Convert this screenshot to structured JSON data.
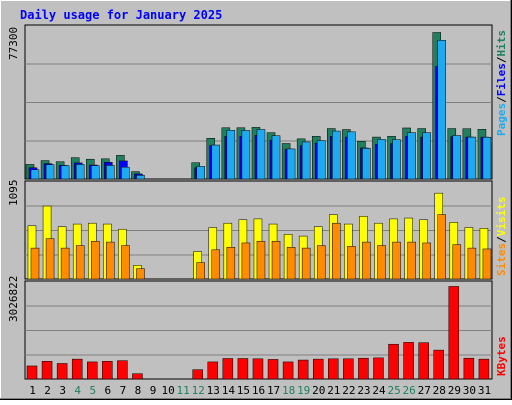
{
  "chart_data": [
    {
      "type": "bar",
      "title": "Daily usage for January 2025",
      "panel": "hits-files-pages",
      "ymax_label": "77300",
      "categories": [
        "1",
        "2",
        "3",
        "4",
        "5",
        "6",
        "7",
        "8",
        "9",
        "10",
        "11",
        "12",
        "13",
        "14",
        "15",
        "16",
        "17",
        "18",
        "19",
        "20",
        "21",
        "22",
        "23",
        "24",
        "25",
        "26",
        "27",
        "28",
        "29",
        "30",
        "31"
      ],
      "series": [
        {
          "name": "Hits",
          "color": "#1f7f5f",
          "values": [
            7500,
            9500,
            8900,
            11000,
            10200,
            10400,
            12200,
            3800,
            0,
            0,
            0,
            8400,
            21000,
            26400,
            26400,
            26600,
            23900,
            18300,
            20700,
            22000,
            26000,
            25500,
            19400,
            21600,
            22000,
            26300,
            26000,
            75500,
            26000,
            25900,
            25600
          ]
        },
        {
          "name": "Files",
          "color": "#0000ff",
          "values": [
            5800,
            7900,
            7000,
            8300,
            7200,
            8600,
            9300,
            2600,
            0,
            0,
            0,
            5800,
            17200,
            22000,
            22000,
            22500,
            20000,
            15400,
            17200,
            18500,
            22000,
            21600,
            16000,
            17900,
            18300,
            22000,
            21600,
            58000,
            21800,
            21600,
            21600
          ]
        },
        {
          "name": "Pages",
          "color": "#1eaaf0",
          "values": [
            4800,
            7400,
            6900,
            7500,
            6900,
            7000,
            6100,
            1900,
            0,
            0,
            0,
            6500,
            17500,
            25100,
            25000,
            25500,
            22300,
            15500,
            19100,
            19800,
            24700,
            24300,
            15800,
            20400,
            20300,
            23900,
            23900,
            71500,
            22400,
            21600,
            21500
          ]
        }
      ],
      "legend": [
        "Pages",
        "/",
        "Files",
        "/",
        "Hits"
      ],
      "weekend_days": [
        "4",
        "5",
        "11",
        "12",
        "18",
        "19",
        "25",
        "26"
      ]
    },
    {
      "type": "bar",
      "panel": "visits-sites",
      "ymax_label": "1095",
      "categories": [
        "1",
        "2",
        "3",
        "4",
        "5",
        "6",
        "7",
        "8",
        "9",
        "10",
        "11",
        "12",
        "13",
        "14",
        "15",
        "16",
        "17",
        "18",
        "19",
        "20",
        "21",
        "22",
        "23",
        "24",
        "25",
        "26",
        "27",
        "28",
        "29",
        "30",
        "31"
      ],
      "series": [
        {
          "name": "Visits",
          "color": "#ffff00",
          "values": [
            620,
            850,
            610,
            640,
            650,
            640,
            580,
            160,
            0,
            0,
            0,
            320,
            600,
            650,
            690,
            700,
            640,
            520,
            500,
            610,
            750,
            640,
            730,
            650,
            700,
            710,
            690,
            1000,
            660,
            600,
            590
          ]
        },
        {
          "name": "Sites",
          "color": "#ff8c00",
          "values": [
            360,
            470,
            360,
            390,
            440,
            430,
            390,
            120,
            0,
            0,
            0,
            190,
            340,
            370,
            420,
            440,
            440,
            370,
            360,
            390,
            650,
            380,
            430,
            390,
            430,
            430,
            420,
            750,
            400,
            360,
            350
          ]
        }
      ],
      "legend": [
        "Sites",
        "/",
        "Visits"
      ]
    },
    {
      "type": "bar",
      "panel": "kbytes",
      "ymax_label": "3026822",
      "categories": [
        "1",
        "2",
        "3",
        "4",
        "5",
        "6",
        "7",
        "8",
        "9",
        "10",
        "11",
        "12",
        "13",
        "14",
        "15",
        "16",
        "17",
        "18",
        "19",
        "20",
        "21",
        "22",
        "23",
        "24",
        "25",
        "26",
        "27",
        "28",
        "29",
        "30",
        "31"
      ],
      "series": [
        {
          "name": "KBytes",
          "color": "#ff0000",
          "values": [
            420000,
            570000,
            500000,
            640000,
            550000,
            570000,
            590000,
            170000,
            0,
            0,
            0,
            300000,
            550000,
            660000,
            660000,
            650000,
            630000,
            550000,
            610000,
            640000,
            650000,
            650000,
            670000,
            680000,
            1120000,
            1180000,
            1170000,
            930000,
            2980000,
            670000,
            640000
          ]
        }
      ],
      "legend": [
        "KBytes"
      ]
    }
  ],
  "colors": {
    "title_text": "#0000ff",
    "panel_bg": "#c0c0c0",
    "outer_bg": "#c0c0c0",
    "grid": "#808080",
    "weekday_label": "#000000",
    "weekend_label": "#1f7f5f",
    "sep_slash": "#000000"
  }
}
